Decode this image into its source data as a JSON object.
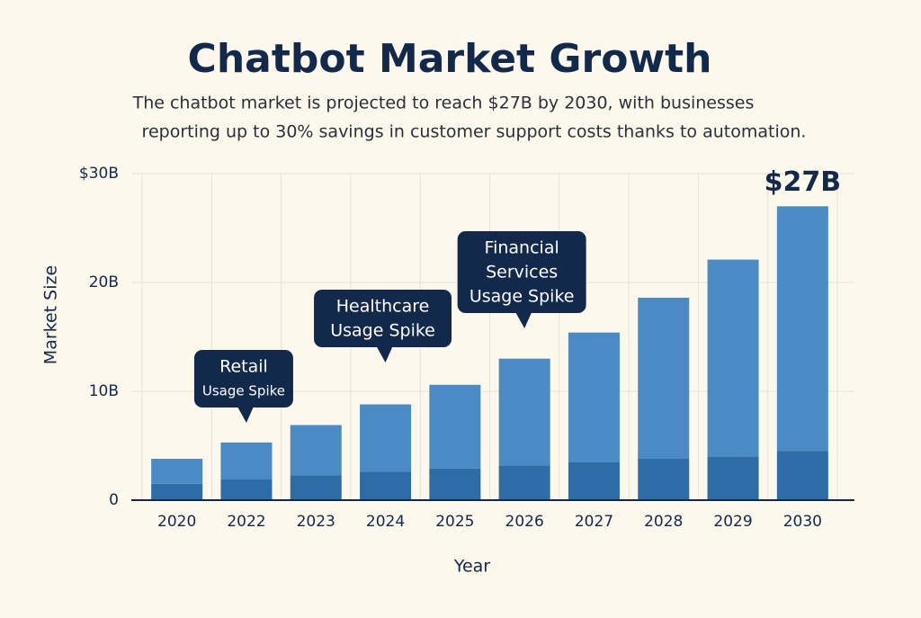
{
  "chart_data": {
    "type": "stacked-bar",
    "title": "Chatbot Market Growth",
    "subtitle": [
      "The chatbot market is projected to reach $27B by 2030, with businesses",
      "reporting up to 30% savings in customer support costs thanks to automation."
    ],
    "x_label": "Year",
    "y_label": "Market Size",
    "categories": [
      "2020",
      "2022",
      "2023",
      "2024",
      "2025",
      "2026",
      "2027",
      "2028",
      "2029",
      "2030"
    ],
    "series": [
      {
        "color": "#2e6ca8",
        "values": [
          1.5,
          1.9,
          2.3,
          2.6,
          2.9,
          3.2,
          3.5,
          3.8,
          4.0,
          4.5
        ]
      },
      {
        "color": "#4a8bc6",
        "values": [
          2.3,
          3.4,
          4.6,
          6.2,
          7.7,
          9.8,
          11.9,
          14.8,
          18.1,
          22.5
        ]
      }
    ],
    "ylim": [
      0,
      30
    ],
    "yticks": [
      0,
      {
        "value": 10,
        "label": "10B"
      },
      {
        "value": 20,
        "label": "20B"
      },
      {
        "value": 30,
        "label": "$30B"
      }
    ],
    "grid": true,
    "annotations": [
      {
        "text": "$27B",
        "category": "2030"
      },
      {
        "text": [
          "Retail",
          "Usage Spike"
        ],
        "category": "2022"
      },
      {
        "text": [
          "Healthcare",
          "Usage Spike"
        ],
        "category": "2024"
      },
      {
        "text": [
          "Financial",
          "Services",
          "Usage Spike"
        ],
        "category": "2026"
      }
    ]
  }
}
